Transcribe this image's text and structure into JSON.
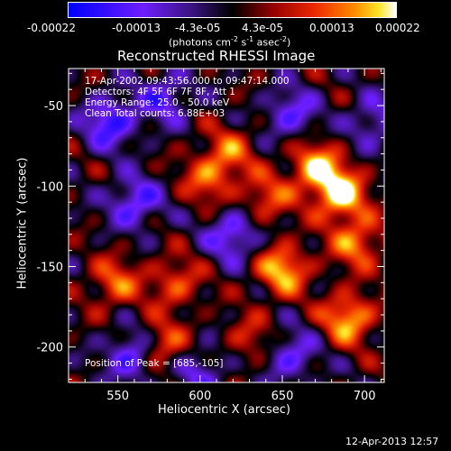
{
  "colorbar": {
    "ticks": [
      "-0.00022",
      "-0.00013",
      "-4.3e-05",
      "4.3e-05",
      "0.00013",
      "0.00022"
    ],
    "unit_main": "(photons cm",
    "unit_exp1": "-2",
    "unit_mid": " s",
    "unit_exp2": "-1",
    "unit_tail": " asec",
    "unit_exp3": "-2",
    "unit_close": ")"
  },
  "title": "Reconstructed RHESSI Image",
  "info": {
    "line1": "17-Apr-2002 09:43:56.000 to 09:47:14.000",
    "line2": "Detectors: 4F 5F 6F 7F 8F, Att 1",
    "line3": "Energy Range: 25.0 - 50.0 keV",
    "line4": "Clean    Total counts: 6.88E+03"
  },
  "peak_label": "Position of Peak = [685,-105]",
  "timestamp": "12-Apr-2013 12:57",
  "chart_data": {
    "type": "heatmap",
    "title": "Reconstructed RHESSI Image",
    "xlabel": "Heliocentric X (arcsec)",
    "ylabel": "Heliocentric Y (arcsec)",
    "xlim": [
      520,
      712
    ],
    "ylim": [
      -222,
      -27
    ],
    "xticks": [
      550,
      600,
      650,
      700
    ],
    "yticks": [
      -50,
      -100,
      -150,
      -200
    ],
    "colorbar_range": [
      -0.00022,
      0.00022
    ],
    "colormap": [
      "#0000ff",
      "#7020ff",
      "#000000",
      "#c00000",
      "#ff6000",
      "#ffffff"
    ],
    "peak_position": [
      685,
      -105
    ],
    "bright_regions": [
      {
        "x": 685,
        "y": -105,
        "level": 1.0
      },
      {
        "x": 670,
        "y": -88,
        "level": 0.85
      },
      {
        "x": 695,
        "y": -135,
        "level": 0.7
      },
      {
        "x": 650,
        "y": -152,
        "level": 0.85
      },
      {
        "x": 605,
        "y": -95,
        "level": 0.6
      },
      {
        "x": 618,
        "y": -78,
        "level": 0.5
      },
      {
        "x": 690,
        "y": -182,
        "level": 0.85
      },
      {
        "x": 585,
        "y": -160,
        "level": 0.55
      },
      {
        "x": 548,
        "y": -160,
        "level": 0.6
      },
      {
        "x": 575,
        "y": -200,
        "level": 0.75
      },
      {
        "x": 640,
        "y": -108,
        "level": 0.55
      },
      {
        "x": 630,
        "y": -195,
        "level": 0.4
      }
    ],
    "dark_regions": [
      {
        "x": 560,
        "y": -110,
        "level": -0.7
      },
      {
        "x": 545,
        "y": -60,
        "level": -0.8
      },
      {
        "x": 578,
        "y": -45,
        "level": -0.6
      },
      {
        "x": 655,
        "y": -55,
        "level": -0.6
      },
      {
        "x": 620,
        "y": -130,
        "level": -0.7
      },
      {
        "x": 560,
        "y": -205,
        "level": -0.85
      },
      {
        "x": 655,
        "y": -205,
        "level": -0.6
      },
      {
        "x": 705,
        "y": -60,
        "level": -0.5
      },
      {
        "x": 600,
        "y": -215,
        "level": -0.5
      }
    ]
  }
}
